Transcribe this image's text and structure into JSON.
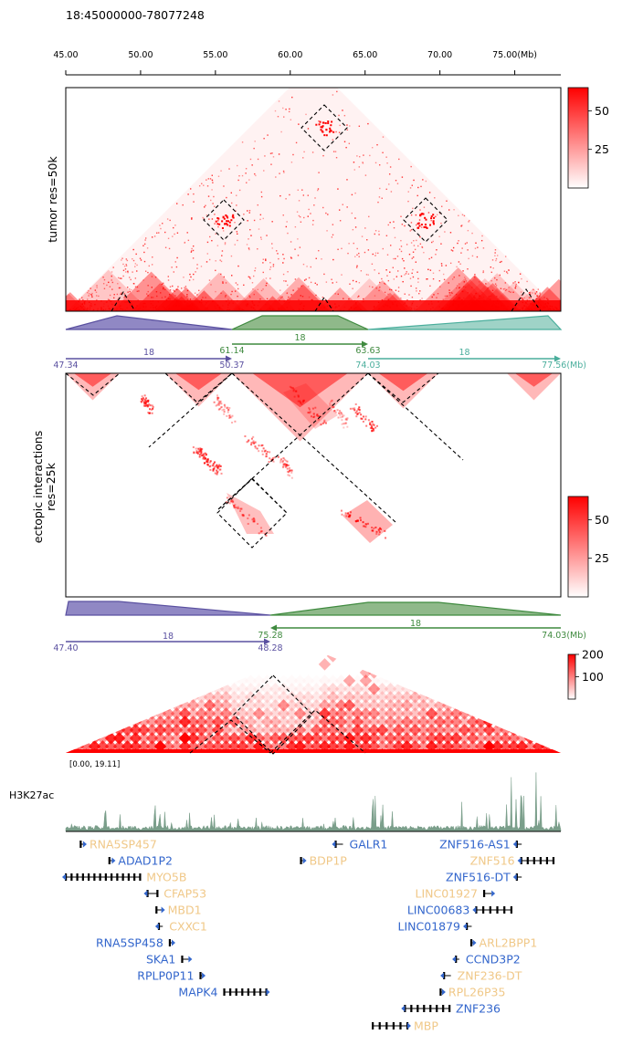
{
  "title": "18:45000000-78077248",
  "colors": {
    "red": "#ff0000",
    "purple": "#5a50a0",
    "purple_fill": "#9088c4",
    "green": "#3f8a3f",
    "green_fill": "#8fb98a",
    "teal": "#4aae9c",
    "teal_fill": "#9fd3c7",
    "track": "#7a9e8a",
    "gene_orange": "#f0c888",
    "gene_blue": "#3366cc",
    "dashed": "#000000"
  },
  "chart_data": [
    {
      "type": "heatmap",
      "name": "ruler",
      "xlabel": "",
      "ticks": [
        45,
        50,
        55,
        60,
        65,
        70,
        75
      ],
      "tick_labels": [
        "45.00",
        "50.00",
        "55.00",
        "60.00",
        "65.00",
        "70.00",
        "75.00(Mb)"
      ],
      "xlim": [
        45.0,
        78.077248
      ]
    },
    {
      "type": "heatmap",
      "name": "tumor",
      "ylabel": "tumor res=50k",
      "xlim": [
        45.0,
        78.077248
      ],
      "colorbar": {
        "ticks": [
          25,
          50
        ],
        "tick_labels": [
          "25",
          "50"
        ],
        "range": [
          0,
          65
        ]
      },
      "domains_mb": [
        [
          48.0,
          50.2
        ],
        [
          62.0,
          63.3
        ],
        [
          71.5,
          74.0
        ]
      ],
      "boxes_mb": [
        [
          60.5,
          64.7
        ],
        [
          54.0,
          57.0
        ],
        [
          67.0,
          70.0
        ],
        [
          60.5,
          62.0
        ],
        [
          53.0,
          55.5
        ],
        [
          67.8,
          69.5
        ],
        [
          61.5,
          63.5
        ]
      ],
      "tracks": [
        {
          "color": "purple",
          "start": 47.34,
          "end": 50.37
        },
        {
          "color": "green",
          "start": 61.14,
          "end": 63.63
        },
        {
          "color": "teal",
          "start": 74.03,
          "end": 77.56
        }
      ]
    },
    {
      "type": "heatmap",
      "name": "ectopic",
      "ylabel": "ectopic interactions\nres=25k",
      "colorbar": {
        "ticks": [
          25,
          50
        ],
        "tick_labels": [
          "25",
          "50"
        ],
        "range": [
          0,
          65
        ]
      },
      "segments": [
        {
          "chrom": "18",
          "start_label": "47.34",
          "end_label": "50.37",
          "color": "purple",
          "direction": "forward"
        },
        {
          "chrom": "18",
          "start_label": "61.14",
          "end_label": "63.63",
          "color": "green",
          "direction": "forward"
        },
        {
          "chrom": "18",
          "start_label": "74.03",
          "end_label": "77.56(Mb)",
          "color": "teal",
          "direction": "forward"
        }
      ]
    },
    {
      "type": "heatmap",
      "name": "third",
      "colorbar": {
        "ticks": [
          100,
          200
        ],
        "tick_labels": [
          "100",
          "200"
        ],
        "range": [
          0,
          200
        ]
      },
      "segments": [
        {
          "chrom": "18",
          "start_label": "47.40",
          "end_label": "48.28",
          "color": "purple",
          "direction": "forward"
        },
        {
          "chrom": "18",
          "start_label": "75.28",
          "end_label": "74.03(Mb)",
          "color": "green",
          "direction": "reverse"
        }
      ]
    },
    {
      "type": "area",
      "name": "H3K27ac",
      "label": "H3K27ac",
      "range_label": "[0.00, 19.11]",
      "ylim": [
        0,
        19.11
      ]
    }
  ],
  "genes": [
    {
      "name": "RNA5SP457",
      "color": "gene_orange",
      "side": "right",
      "strand": "+",
      "start": 0.03,
      "end": 0.035
    },
    {
      "name": "ADAD1P2",
      "color": "gene_blue",
      "side": "right",
      "strand": "+",
      "start": 0.088,
      "end": 0.093
    },
    {
      "name": "MYO5B",
      "color": "gene_orange",
      "side": "right",
      "strand": "-",
      "start": 0.0,
      "end": 0.15
    },
    {
      "name": "CFAP53",
      "color": "gene_orange",
      "side": "right",
      "strand": "-",
      "start": 0.165,
      "end": 0.185
    },
    {
      "name": "MBD1",
      "color": "gene_orange",
      "side": "right",
      "strand": "+",
      "start": 0.183,
      "end": 0.193
    },
    {
      "name": "CXXC1",
      "color": "gene_orange",
      "side": "right",
      "strand": "-",
      "start": 0.188,
      "end": 0.196
    },
    {
      "name": "RNA5SP458",
      "color": "gene_blue",
      "side": "left",
      "strand": "+",
      "start": 0.21,
      "end": 0.214
    },
    {
      "name": "SKA1",
      "color": "gene_blue",
      "side": "left",
      "strand": "+",
      "start": 0.235,
      "end": 0.248
    },
    {
      "name": "RPLP0P11",
      "color": "gene_blue",
      "side": "left",
      "strand": "+",
      "start": 0.272,
      "end": 0.275
    },
    {
      "name": "MAPK4",
      "color": "gene_blue",
      "side": "left",
      "strand": "+",
      "start": 0.32,
      "end": 0.405
    },
    {
      "name": "GALR1",
      "color": "gene_blue",
      "side": "right",
      "strand": "-",
      "start": 0.545,
      "end": 0.56
    },
    {
      "name": "BDP1P",
      "color": "gene_orange",
      "side": "right",
      "strand": "+",
      "start": 0.475,
      "end": 0.479
    },
    {
      "name": "ZNF516-AS1",
      "color": "gene_blue",
      "side": "left",
      "strand": "-",
      "start": 0.911,
      "end": 0.921
    },
    {
      "name": "ZNF516",
      "color": "gene_orange",
      "side": "left",
      "strand": "-",
      "start": 0.92,
      "end": 0.985
    },
    {
      "name": "ZNF516-DT",
      "color": "gene_blue",
      "side": "left",
      "strand": "-",
      "start": 0.911,
      "end": 0.921
    },
    {
      "name": "LINC01927",
      "color": "gene_orange",
      "side": "left",
      "strand": "+",
      "start": 0.845,
      "end": 0.86
    },
    {
      "name": "LINC00683",
      "color": "gene_blue",
      "side": "left",
      "strand": "-",
      "start": 0.829,
      "end": 0.9
    },
    {
      "name": "LINC01879",
      "color": "gene_blue",
      "side": "left",
      "strand": "-",
      "start": 0.81,
      "end": 0.82
    },
    {
      "name": "ARL2BPP1",
      "color": "gene_orange",
      "side": "right",
      "strand": "+",
      "start": 0.819,
      "end": 0.822
    },
    {
      "name": "CCND3P2",
      "color": "gene_blue",
      "side": "right",
      "strand": "-",
      "start": 0.788,
      "end": 0.795
    },
    {
      "name": "ZNF236-DT",
      "color": "gene_orange",
      "side": "right",
      "strand": "-",
      "start": 0.764,
      "end": 0.778
    },
    {
      "name": "RPL26P35",
      "color": "gene_orange",
      "side": "right",
      "strand": "+",
      "start": 0.757,
      "end": 0.76
    },
    {
      "name": "ZNF236",
      "color": "gene_blue",
      "side": "right",
      "strand": "-",
      "start": 0.685,
      "end": 0.775
    },
    {
      "name": "MBP",
      "color": "gene_orange",
      "side": "right",
      "strand": "+",
      "start": 0.62,
      "end": 0.69
    }
  ]
}
